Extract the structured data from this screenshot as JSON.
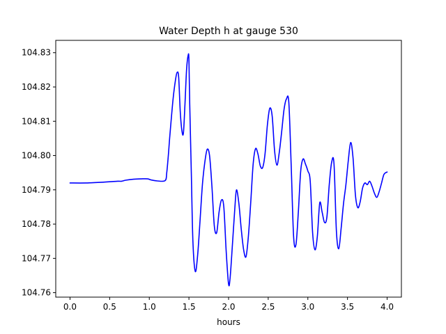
{
  "chart_data": {
    "type": "line",
    "title": "Water Depth h at gauge 530",
    "xlabel": "hours",
    "ylabel": "",
    "xlim": [
      -0.18,
      4.18
    ],
    "ylim": [
      104.7587,
      104.8336
    ],
    "xticks": [
      0.0,
      0.5,
      1.0,
      1.5,
      2.0,
      2.5,
      3.0,
      3.5,
      4.0
    ],
    "xtick_labels": [
      "0.0",
      "0.5",
      "1.0",
      "1.5",
      "2.0",
      "2.5",
      "3.0",
      "3.5",
      "4.0"
    ],
    "yticks": [
      104.76,
      104.77,
      104.78,
      104.79,
      104.8,
      104.81,
      104.82,
      104.83
    ],
    "ytick_labels": [
      "104.76",
      "104.77",
      "104.78",
      "104.79",
      "104.80",
      "104.81",
      "104.82",
      "104.83"
    ],
    "grid": false,
    "series": [
      {
        "color": "#0000ff",
        "x": [
          0.0,
          0.2,
          0.4,
          0.6,
          0.65,
          0.7,
          0.8,
          0.9,
          0.98,
          1.02,
          1.1,
          1.2,
          1.22,
          1.24,
          1.26,
          1.3,
          1.33,
          1.35,
          1.37,
          1.39,
          1.41,
          1.43,
          1.45,
          1.47,
          1.49,
          1.5,
          1.51,
          1.53,
          1.55,
          1.58,
          1.61,
          1.64,
          1.67,
          1.7,
          1.73,
          1.76,
          1.79,
          1.82,
          1.85,
          1.88,
          1.91,
          1.94,
          1.97,
          2.0,
          2.02,
          2.05,
          2.08,
          2.1,
          2.13,
          2.16,
          2.19,
          2.22,
          2.25,
          2.28,
          2.31,
          2.34,
          2.37,
          2.4,
          2.43,
          2.46,
          2.49,
          2.52,
          2.55,
          2.58,
          2.61,
          2.64,
          2.67,
          2.7,
          2.73,
          2.76,
          2.79,
          2.82,
          2.85,
          2.88,
          2.91,
          2.94,
          2.97,
          3.0,
          3.03,
          3.06,
          3.09,
          3.12,
          3.15,
          3.18,
          3.21,
          3.24,
          3.27,
          3.3,
          3.33,
          3.36,
          3.39,
          3.42,
          3.45,
          3.48,
          3.51,
          3.54,
          3.57,
          3.6,
          3.63,
          3.66,
          3.69,
          3.72,
          3.75,
          3.78,
          3.81,
          3.84,
          3.87,
          3.9,
          3.93,
          3.96,
          4.0
        ],
        "y": [
          104.792,
          104.792,
          104.7922,
          104.7925,
          104.7925,
          104.7928,
          104.7931,
          104.7932,
          104.7932,
          104.7929,
          104.7926,
          104.7927,
          104.795,
          104.8,
          104.806,
          104.8165,
          104.822,
          104.8242,
          104.823,
          104.813,
          104.8075,
          104.8065,
          104.815,
          104.825,
          104.8292,
          104.828,
          104.815,
          104.795,
          104.775,
          104.7662,
          104.771,
          104.781,
          104.7915,
          104.798,
          104.8018,
          104.8,
          104.791,
          104.7795,
          104.7775,
          104.7835,
          104.787,
          104.785,
          104.772,
          104.7625,
          104.7645,
          104.7745,
          104.785,
          104.79,
          104.786,
          104.7785,
          104.7725,
          104.7705,
          104.7765,
          104.7865,
          104.7975,
          104.802,
          104.8005,
          104.797,
          104.7965,
          104.8005,
          104.809,
          104.8138,
          104.8115,
          104.8015,
          104.7972,
          104.801,
          104.807,
          104.8135,
          104.8165,
          104.8155,
          104.797,
          104.7765,
          104.774,
          104.7835,
          104.7955,
          104.799,
          104.7975,
          104.7955,
          104.7925,
          104.7775,
          104.7725,
          104.7765,
          104.7862,
          104.7835,
          104.7805,
          104.782,
          104.7915,
          104.798,
          104.7975,
          104.778,
          104.7728,
          104.7788,
          104.786,
          104.7915,
          104.7985,
          104.8038,
          104.7993,
          104.7885,
          104.7848,
          104.7865,
          104.7905,
          104.792,
          104.7915,
          104.7925,
          104.791,
          104.789,
          104.7878,
          104.7895,
          104.792,
          104.7945,
          104.7952
        ]
      }
    ]
  }
}
